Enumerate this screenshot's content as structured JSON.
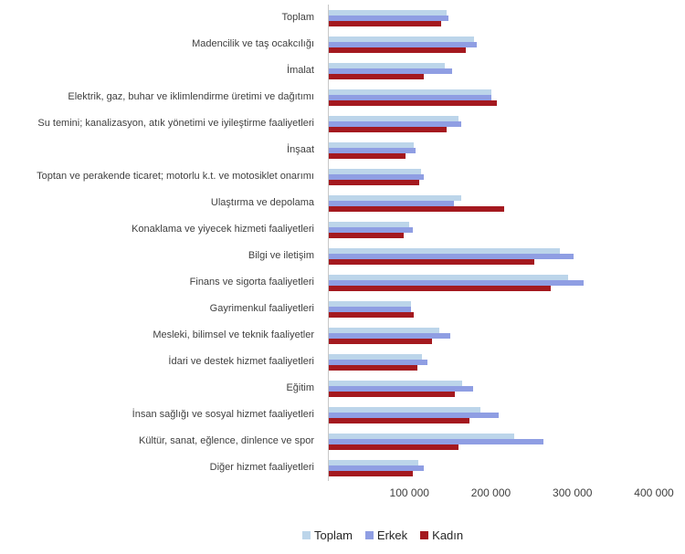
{
  "chart_data": {
    "type": "bar",
    "orientation": "horizontal",
    "title": "",
    "xlabel": "",
    "ylabel": "",
    "grid": false,
    "legend_position": "bottom",
    "xlim": [
      0,
      400000
    ],
    "x_ticks": [
      {
        "value": 100000,
        "label": "100 000"
      },
      {
        "value": 200000,
        "label": "200 000"
      },
      {
        "value": 300000,
        "label": "300 000"
      },
      {
        "value": 400000,
        "label": "400 000"
      }
    ],
    "categories": [
      "Toplam",
      "Madencilik ve taş ocakcılığı",
      "İmalat",
      "Elektrik, gaz, buhar ve iklimlendirme üretimi ve dağıtımı",
      "Su temini; kanalizasyon, atık yönetimi ve iyileştirme faaliyetleri",
      "İnşaat",
      "Toptan ve perakende ticaret; motorlu k.t. ve motosiklet onarımı",
      "Ulaştırma ve depolama",
      "Konaklama ve yiyecek hizmeti faaliyetleri",
      "Bilgi ve iletişim",
      "Finans ve sigorta faaliyetleri",
      "Gayrimenkul faaliyetleri",
      "Mesleki, bilimsel ve teknik faaliyetler",
      "İdari ve destek hizmet faaliyetleri",
      "Eğitim",
      "İnsan sağlığı ve sosyal hizmet faaliyetleri",
      "Kültür, sanat, eğlence, dinlence ve spor",
      "Diğer hizmet faaliyetleri"
    ],
    "series": [
      {
        "name": "Toplam",
        "color": "#BCD5EA",
        "values": [
          144000,
          178000,
          142000,
          199000,
          159000,
          104000,
          113000,
          163000,
          99000,
          284000,
          293000,
          101000,
          136000,
          114000,
          164000,
          186000,
          228000,
          110000
        ]
      },
      {
        "name": "Erkek",
        "color": "#8F9EE3",
        "values": [
          147000,
          181000,
          151000,
          199000,
          162000,
          106000,
          116000,
          153000,
          103000,
          300000,
          313000,
          101000,
          149000,
          121000,
          177000,
          208000,
          263000,
          116000
        ]
      },
      {
        "name": "Kadın",
        "color": "#A4191F",
        "values": [
          138000,
          168000,
          117000,
          206000,
          145000,
          94000,
          111000,
          215000,
          92000,
          252000,
          272000,
          104000,
          127000,
          109000,
          155000,
          173000,
          159000,
          103000
        ]
      }
    ]
  }
}
